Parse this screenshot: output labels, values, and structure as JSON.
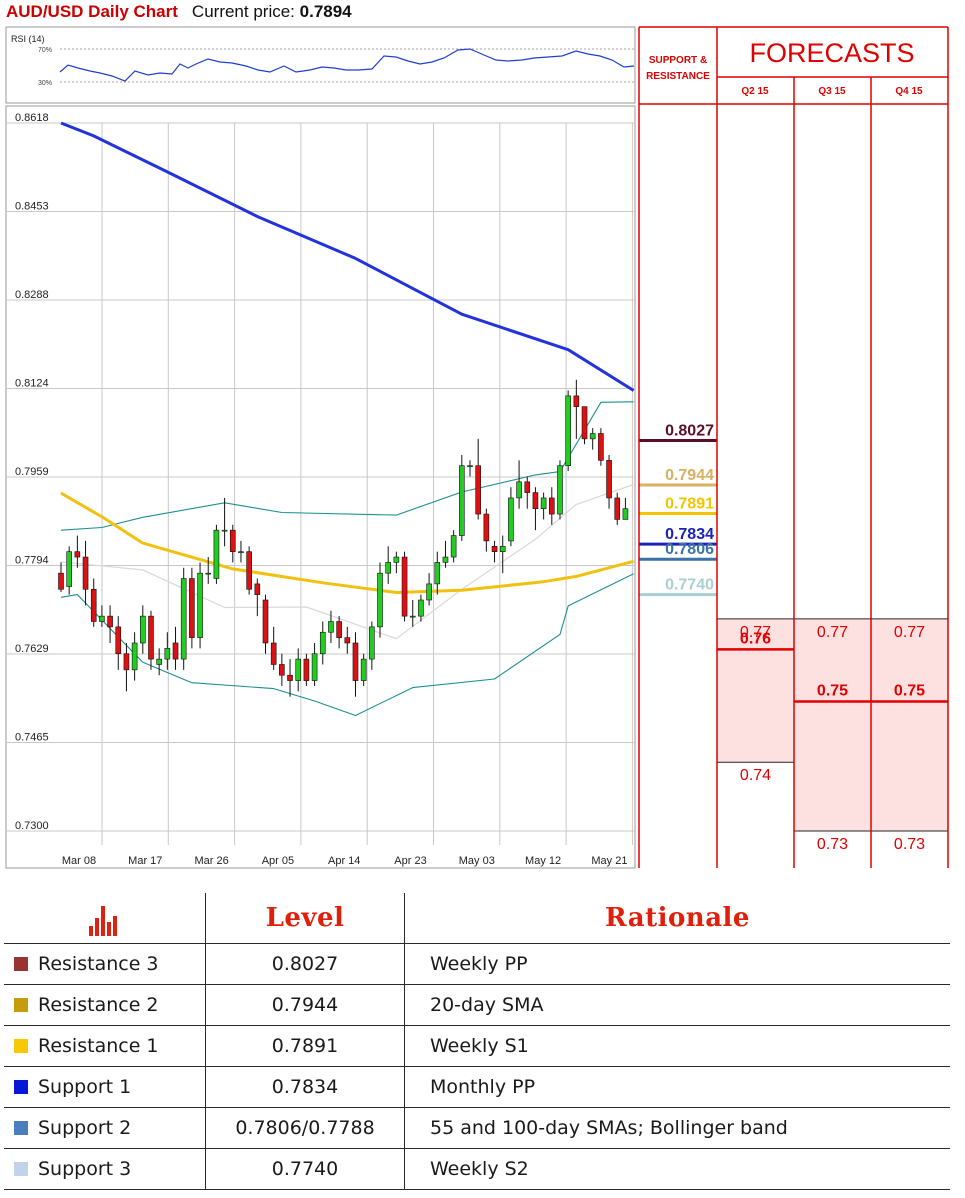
{
  "header": {
    "title": "AUD/USD Daily Chart",
    "price_label": "Current price:",
    "price_value": "0.7894"
  },
  "rsi": {
    "label": "RSI (14)",
    "upper_tick": "70%",
    "lower_tick": "30%",
    "line_color": "#1f3fd0"
  },
  "chart_data": {
    "type": "candlestick",
    "y_ticks": [
      "0.8618",
      "0.8453",
      "0.8288",
      "0.8124",
      "0.7959",
      "0.7794",
      "0.7629",
      "0.7465",
      "0.7300"
    ],
    "ylim": [
      0.73,
      0.8618
    ],
    "x_ticks": [
      "Mar 08",
      "Mar 17",
      "Mar 26",
      "Apr 05",
      "Apr 14",
      "Apr 23",
      "May 03",
      "May 12",
      "May 21"
    ],
    "grid": true,
    "colors": {
      "up": "#22cc22",
      "down": "#dd1111",
      "sma200": "#2233dd",
      "sma55": "#f2c10f",
      "bollinger": "#1e8f8f",
      "sma20": "#d8d8d8"
    },
    "candles": [
      [
        0.778,
        0.775,
        0.78,
        0.7745
      ],
      [
        0.7755,
        0.782,
        0.783,
        0.774
      ],
      [
        0.782,
        0.781,
        0.785,
        0.779
      ],
      [
        0.781,
        0.775,
        0.784,
        0.772
      ],
      [
        0.775,
        0.769,
        0.777,
        0.768
      ],
      [
        0.769,
        0.77,
        0.772,
        0.768
      ],
      [
        0.77,
        0.768,
        0.772,
        0.765
      ],
      [
        0.768,
        0.763,
        0.77,
        0.76
      ],
      [
        0.763,
        0.76,
        0.765,
        0.756
      ],
      [
        0.76,
        0.765,
        0.767,
        0.758
      ],
      [
        0.765,
        0.77,
        0.772,
        0.763
      ],
      [
        0.77,
        0.762,
        0.771,
        0.76
      ],
      [
        0.761,
        0.762,
        0.764,
        0.759
      ],
      [
        0.762,
        0.764,
        0.767,
        0.76
      ],
      [
        0.765,
        0.762,
        0.768,
        0.76
      ],
      [
        0.762,
        0.777,
        0.779,
        0.76
      ],
      [
        0.777,
        0.766,
        0.779,
        0.764
      ],
      [
        0.766,
        0.778,
        0.78,
        0.764
      ],
      [
        0.778,
        0.778,
        0.781,
        0.776
      ],
      [
        0.777,
        0.786,
        0.787,
        0.776
      ],
      [
        0.786,
        0.786,
        0.792,
        0.783
      ],
      [
        0.786,
        0.782,
        0.787,
        0.78
      ],
      [
        0.782,
        0.782,
        0.784,
        0.78
      ],
      [
        0.782,
        0.775,
        0.783,
        0.774
      ],
      [
        0.776,
        0.774,
        0.777,
        0.77
      ],
      [
        0.773,
        0.765,
        0.774,
        0.763
      ],
      [
        0.765,
        0.761,
        0.768,
        0.76
      ],
      [
        0.761,
        0.759,
        0.763,
        0.757
      ],
      [
        0.759,
        0.758,
        0.762,
        0.755
      ],
      [
        0.758,
        0.762,
        0.764,
        0.756
      ],
      [
        0.762,
        0.758,
        0.763,
        0.757
      ],
      [
        0.758,
        0.763,
        0.765,
        0.757
      ],
      [
        0.763,
        0.767,
        0.769,
        0.761
      ],
      [
        0.767,
        0.769,
        0.771,
        0.765
      ],
      [
        0.769,
        0.766,
        0.77,
        0.764
      ],
      [
        0.766,
        0.765,
        0.768,
        0.763
      ],
      [
        0.765,
        0.758,
        0.767,
        0.755
      ],
      [
        0.758,
        0.762,
        0.763,
        0.757
      ],
      [
        0.762,
        0.768,
        0.769,
        0.76
      ],
      [
        0.768,
        0.778,
        0.78,
        0.766
      ],
      [
        0.778,
        0.78,
        0.783,
        0.776
      ],
      [
        0.78,
        0.781,
        0.782,
        0.778
      ],
      [
        0.781,
        0.77,
        0.782,
        0.769
      ],
      [
        0.77,
        0.77,
        0.773,
        0.768
      ],
      [
        0.77,
        0.773,
        0.774,
        0.769
      ],
      [
        0.773,
        0.776,
        0.778,
        0.772
      ],
      [
        0.776,
        0.78,
        0.782,
        0.774
      ],
      [
        0.78,
        0.781,
        0.784,
        0.779
      ],
      [
        0.781,
        0.785,
        0.786,
        0.78
      ],
      [
        0.785,
        0.798,
        0.8,
        0.784
      ],
      [
        0.798,
        0.798,
        0.799,
        0.796
      ],
      [
        0.798,
        0.789,
        0.803,
        0.788
      ],
      [
        0.789,
        0.784,
        0.79,
        0.782
      ],
      [
        0.783,
        0.782,
        0.784,
        0.78
      ],
      [
        0.782,
        0.783,
        0.785,
        0.778
      ],
      [
        0.784,
        0.792,
        0.794,
        0.783
      ],
      [
        0.792,
        0.795,
        0.799,
        0.79
      ],
      [
        0.795,
        0.793,
        0.796,
        0.79
      ],
      [
        0.793,
        0.79,
        0.794,
        0.786
      ],
      [
        0.79,
        0.792,
        0.793,
        0.788
      ],
      [
        0.792,
        0.789,
        0.794,
        0.787
      ],
      [
        0.789,
        0.798,
        0.799,
        0.788
      ],
      [
        0.798,
        0.811,
        0.812,
        0.797
      ],
      [
        0.811,
        0.809,
        0.814,
        0.803
      ],
      [
        0.809,
        0.803,
        0.809,
        0.802
      ],
      [
        0.803,
        0.804,
        0.805,
        0.801
      ],
      [
        0.804,
        0.799,
        0.805,
        0.798
      ],
      [
        0.799,
        0.792,
        0.8,
        0.79
      ],
      [
        0.792,
        0.788,
        0.793,
        0.787
      ],
      [
        0.788,
        0.79,
        0.792,
        0.788
      ]
    ],
    "sma200": [
      [
        0,
        0.8618
      ],
      [
        4,
        0.8594
      ],
      [
        13,
        0.8527
      ],
      [
        24,
        0.8444
      ],
      [
        36,
        0.8366
      ],
      [
        49,
        0.8262
      ],
      [
        62,
        0.8196
      ],
      [
        70,
        0.812
      ]
    ],
    "sma55": [
      [
        0,
        0.7929
      ],
      [
        5,
        0.7885
      ],
      [
        10,
        0.7836
      ],
      [
        21,
        0.7788
      ],
      [
        32,
        0.7762
      ],
      [
        41,
        0.7744
      ],
      [
        49,
        0.7748
      ],
      [
        59,
        0.7764
      ],
      [
        63,
        0.7774
      ],
      [
        70,
        0.7802
      ]
    ],
    "bb_upper": [
      [
        0,
        0.786
      ],
      [
        5,
        0.7865
      ],
      [
        10,
        0.7884
      ],
      [
        20,
        0.7911
      ],
      [
        27,
        0.7893
      ],
      [
        41,
        0.7888
      ],
      [
        49,
        0.7931
      ],
      [
        58,
        0.7963
      ],
      [
        61,
        0.7969
      ],
      [
        66,
        0.8098
      ],
      [
        70,
        0.8099
      ]
    ],
    "bb_lower": [
      [
        0,
        0.7735
      ],
      [
        2,
        0.774
      ],
      [
        10,
        0.7614
      ],
      [
        16,
        0.7576
      ],
      [
        26,
        0.7565
      ],
      [
        31,
        0.7542
      ],
      [
        36,
        0.7515
      ],
      [
        43,
        0.7567
      ],
      [
        53,
        0.7583
      ],
      [
        61,
        0.7666
      ],
      [
        62,
        0.7719
      ],
      [
        70,
        0.7779
      ]
    ],
    "sma20": [
      [
        0,
        0.7801
      ],
      [
        10,
        0.7786
      ],
      [
        20,
        0.7716
      ],
      [
        30,
        0.7717
      ],
      [
        41,
        0.7658
      ],
      [
        49,
        0.775
      ],
      [
        58,
        0.7843
      ],
      [
        63,
        0.7908
      ],
      [
        70,
        0.7945
      ]
    ]
  },
  "forecast": {
    "sr_header": [
      "SUPPORT &",
      "RESISTANCE"
    ],
    "title": "FORECASTS",
    "quarters": [
      "Q2 15",
      "Q3 15",
      "Q4 15"
    ],
    "sr_levels": [
      {
        "label": "0.8027",
        "value": 0.8027,
        "color": "#5b0f26"
      },
      {
        "label": "0.7944",
        "value": 0.7944,
        "color": "#d7b060"
      },
      {
        "label": "0.7891",
        "value": 0.7891,
        "color": "#f5c400"
      },
      {
        "label": "0.7834",
        "value": 0.7834,
        "color": "#1c22b8"
      },
      {
        "label": "0.7806",
        "value": 0.7806,
        "color": "#3a72a8"
      },
      {
        "label": "0.7740",
        "value": 0.774,
        "color": "#a9d0d0"
      }
    ],
    "columns": [
      {
        "shade_top": 0.7695,
        "shade_bottom": 0.7428,
        "entries": [
          {
            "label": "0.77",
            "value": 0.7695,
            "bold": false
          },
          {
            "label": "0.76",
            "value": 0.7638,
            "bold": true
          },
          {
            "label": "0.74",
            "value": 0.7428,
            "bold": false
          }
        ]
      },
      {
        "shade_top": 0.7695,
        "shade_bottom": 0.73,
        "entries": [
          {
            "label": "0.77",
            "value": 0.7695,
            "bold": false
          },
          {
            "label": "0.75",
            "value": 0.7541,
            "bold": true
          },
          {
            "label": "0.73",
            "value": 0.73,
            "bold": false
          }
        ]
      },
      {
        "shade_top": 0.7695,
        "shade_bottom": 0.73,
        "entries": [
          {
            "label": "0.77",
            "value": 0.7695,
            "bold": false
          },
          {
            "label": "0.75",
            "value": 0.7541,
            "bold": true
          },
          {
            "label": "0.73",
            "value": 0.73,
            "bold": false
          }
        ]
      }
    ]
  },
  "levels_table": {
    "icon": "bar-chart-icon",
    "col_level": "Level",
    "col_rationale": "Rationale",
    "rows": [
      {
        "name": "Resistance 3",
        "level": "0.8027",
        "rationale": "Weekly PP",
        "color": "#9a3434"
      },
      {
        "name": "Resistance 2",
        "level": "0.7944",
        "rationale": "20-day SMA",
        "color": "#c79b0e"
      },
      {
        "name": "Resistance 1",
        "level": "0.7891",
        "rationale": "Weekly S1",
        "color": "#f9c804"
      },
      {
        "name": "Support 1",
        "level": "0.7834",
        "rationale": "Monthly PP",
        "color": "#0617d8"
      },
      {
        "name": "Support 2",
        "level": "0.7806/0.7788",
        "rationale": "55 and 100-day SMAs; Bollinger band",
        "color": "#4a7fbd"
      },
      {
        "name": "Support 3",
        "level": "0.7740",
        "rationale": "Weekly S2",
        "color": "#c0d3ea"
      }
    ]
  }
}
